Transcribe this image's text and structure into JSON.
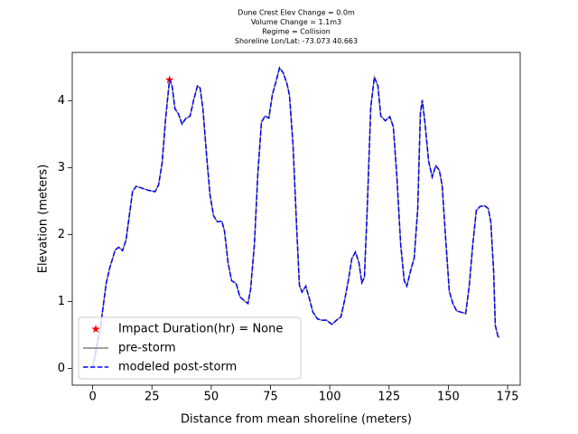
{
  "chart_data": {
    "type": "line",
    "title": [
      "Dune Crest Elev Change = 0.0m",
      "Volume Change = 1.1m3",
      "Regime = Collision",
      "Shoreline Lon/Lat: -73.073 40.663"
    ],
    "xlabel": "Distance from mean shoreline (meters)",
    "ylabel": "Elevation (meters)",
    "xlim": [
      -8.6,
      180.3
    ],
    "ylim": [
      -0.25,
      4.72
    ],
    "xticks": [
      0,
      25,
      50,
      75,
      100,
      125,
      150,
      175
    ],
    "yticks": [
      0,
      1,
      2,
      3,
      4
    ],
    "grid": false,
    "legend": "lower left",
    "x": [
      0,
      3.4,
      5.7,
      7.2,
      9.5,
      11,
      12.6,
      14.1,
      15.6,
      16.8,
      18.3,
      20.2,
      23.6,
      26.3,
      27.8,
      29.3,
      30.8,
      32.4,
      33.5,
      34.7,
      36.2,
      37.7,
      39.2,
      41.1,
      42.6,
      44.2,
      45.3,
      46.5,
      48,
      49.5,
      51,
      52.6,
      54.5,
      55.6,
      57.1,
      58.6,
      60.5,
      62.1,
      64,
      65.5,
      66.6,
      68.2,
      69.7,
      71.2,
      72.7,
      74.3,
      75.8,
      77.3,
      78.8,
      80.3,
      81.9,
      83,
      84.5,
      86.1,
      87.2,
      88.3,
      89.9,
      91.4,
      92.9,
      94.8,
      96.7,
      98.6,
      100.9,
      102.8,
      104.7,
      106.2,
      107.8,
      109.3,
      110.8,
      112.3,
      113.5,
      114.6,
      115.8,
      117.3,
      118.8,
      120.3,
      121.5,
      123.4,
      125.3,
      126.8,
      128.3,
      129.9,
      131.4,
      132.5,
      134,
      135.6,
      137.1,
      138.2,
      139,
      140.1,
      141.7,
      143.2,
      144.7,
      146.2,
      147.4,
      148.9,
      150.4,
      151.9,
      153.5,
      155.4,
      157.3,
      158.8,
      160.3,
      161.8,
      163.4,
      165.3,
      166.8,
      167.9,
      169.1,
      169.8,
      171,
      171.7
    ],
    "series": [
      {
        "name": "Impact Duration(hr) = None",
        "color": "red",
        "marker": "star",
        "x": [
          32.4
        ],
        "values": [
          4.31
        ]
      },
      {
        "name": "pre-storm",
        "color": "gray",
        "dash": false,
        "values": [
          0,
          0.64,
          1.27,
          1.5,
          1.77,
          1.81,
          1.76,
          1.92,
          2.32,
          2.64,
          2.72,
          2.7,
          2.66,
          2.64,
          2.74,
          3.07,
          3.74,
          4.31,
          4.22,
          3.88,
          3.8,
          3.65,
          3.73,
          3.77,
          4.01,
          4.22,
          4.19,
          3.88,
          3.2,
          2.59,
          2.28,
          2.19,
          2.2,
          2.05,
          1.58,
          1.31,
          1.27,
          1.07,
          1.01,
          0.97,
          1.18,
          1.85,
          2.93,
          3.68,
          3.77,
          3.74,
          4.09,
          4.28,
          4.49,
          4.42,
          4.26,
          4.08,
          3.34,
          2.05,
          1.24,
          1.14,
          1.23,
          1.04,
          0.84,
          0.74,
          0.72,
          0.72,
          0.66,
          0.72,
          0.77,
          1.01,
          1.31,
          1.64,
          1.74,
          1.58,
          1.28,
          1.36,
          2.39,
          3.91,
          4.35,
          4.22,
          3.77,
          3.7,
          3.76,
          3.61,
          2.86,
          1.85,
          1.31,
          1.23,
          1.45,
          1.65,
          2.39,
          3.81,
          4.01,
          3.68,
          3.09,
          2.86,
          3.03,
          2.96,
          2.73,
          1.92,
          1.15,
          0.97,
          0.86,
          0.84,
          0.82,
          1.23,
          1.85,
          2.36,
          2.42,
          2.43,
          2.39,
          2.19,
          1.45,
          0.64,
          0.47,
          0.47
        ]
      },
      {
        "name": "modeled post-storm",
        "color": "blue",
        "dash": true,
        "values": [
          0,
          0.64,
          1.27,
          1.5,
          1.77,
          1.81,
          1.76,
          1.92,
          2.32,
          2.64,
          2.72,
          2.7,
          2.66,
          2.64,
          2.74,
          3.07,
          3.74,
          4.31,
          4.22,
          3.88,
          3.8,
          3.65,
          3.73,
          3.77,
          4.01,
          4.22,
          4.19,
          3.88,
          3.2,
          2.59,
          2.28,
          2.19,
          2.2,
          2.05,
          1.58,
          1.31,
          1.27,
          1.07,
          1.01,
          0.97,
          1.18,
          1.85,
          2.93,
          3.68,
          3.77,
          3.74,
          4.09,
          4.28,
          4.49,
          4.42,
          4.26,
          4.08,
          3.34,
          2.05,
          1.24,
          1.14,
          1.23,
          1.04,
          0.84,
          0.74,
          0.72,
          0.72,
          0.66,
          0.72,
          0.77,
          1.01,
          1.31,
          1.64,
          1.74,
          1.58,
          1.28,
          1.36,
          2.39,
          3.91,
          4.35,
          4.22,
          3.77,
          3.7,
          3.76,
          3.61,
          2.86,
          1.85,
          1.31,
          1.23,
          1.45,
          1.65,
          2.39,
          3.81,
          4.01,
          3.68,
          3.09,
          2.86,
          3.03,
          2.96,
          2.73,
          1.92,
          1.15,
          0.97,
          0.86,
          0.84,
          0.82,
          1.23,
          1.85,
          2.36,
          2.42,
          2.43,
          2.39,
          2.19,
          1.45,
          0.64,
          0.47,
          0.47
        ]
      }
    ]
  }
}
